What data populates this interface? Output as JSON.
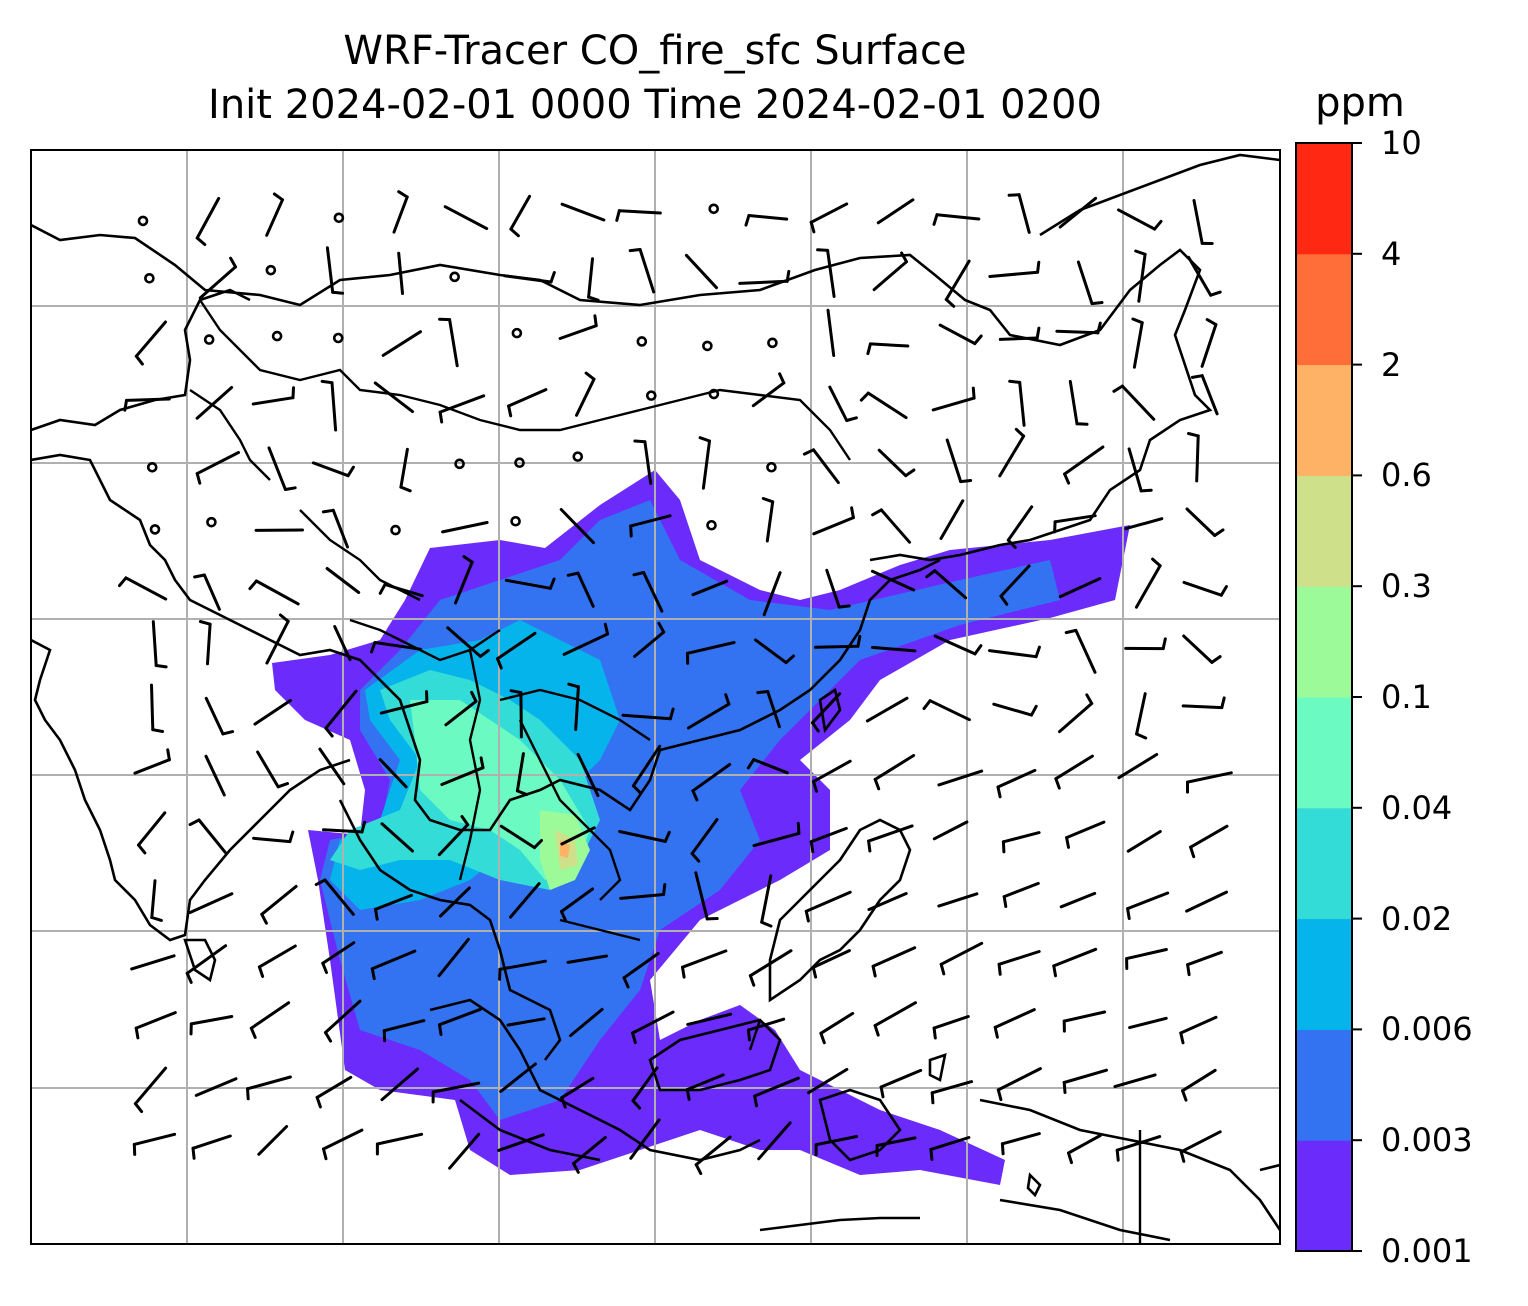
{
  "title": {
    "line1": "WRF-Tracer CO_fire_sfc Surface",
    "line2": "Init 2024-02-01 0000 Time 2024-02-01 0200"
  },
  "colorbar": {
    "unit": "ppm",
    "levels": [
      "0.001",
      "0.003",
      "0.006",
      "0.02",
      "0.04",
      "0.1",
      "0.3",
      "0.6",
      "2",
      "4",
      "10"
    ],
    "colors": [
      "#6a2bfb",
      "#3373f1",
      "#06b4ec",
      "#33dcd6",
      "#6bfbc2",
      "#9cfb98",
      "#cfe08a",
      "#fdb266",
      "#ff6d39",
      "#ff2812"
    ]
  },
  "map": {
    "gridlines": true,
    "coastline_color": "#000000",
    "gridline_color": "#b0b0b0",
    "features": [
      "coastlines",
      "country-borders",
      "wind-barbs",
      "calm-wind-circles",
      "co-fire-concentration-fill"
    ]
  }
}
